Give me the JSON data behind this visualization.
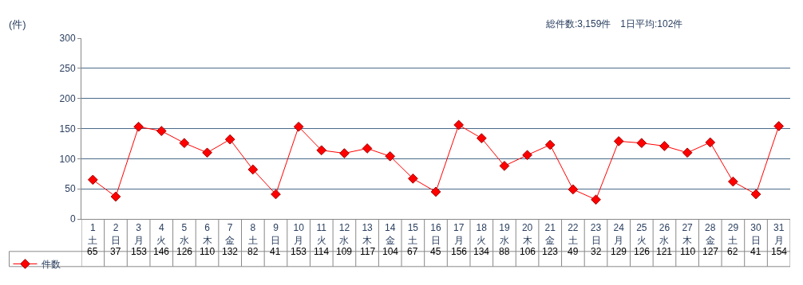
{
  "chart_data": {
    "type": "line",
    "ylabel": "(件)",
    "annotations": [
      "総件数:3,159件　1日平均:102件"
    ],
    "categories": [
      "1\n土",
      "2\n日",
      "3\n月",
      "4\n火",
      "5\n水",
      "6\n木",
      "7\n金",
      "8\n土",
      "9\n日",
      "10\n月",
      "11\n火",
      "12\n水",
      "13\n木",
      "14\n金",
      "15\n土",
      "16\n日",
      "17\n月",
      "18\n火",
      "19\n水",
      "20\n木",
      "21\n金",
      "22\n土",
      "23\n日",
      "24\n月",
      "25\n火",
      "26\n水",
      "27\n木",
      "28\n金",
      "29\n土",
      "30\n日",
      "31\n月"
    ],
    "series": [
      {
        "name": "件数",
        "color": "#ff0000",
        "values": [
          65,
          37,
          153,
          146,
          126,
          110,
          132,
          82,
          41,
          153,
          114,
          109,
          117,
          104,
          67,
          45,
          156,
          134,
          88,
          106,
          123,
          49,
          32,
          129,
          126,
          121,
          110,
          127,
          62,
          41,
          154
        ]
      }
    ],
    "ylim": [
      0,
      300
    ],
    "yticks": [
      0,
      50,
      100,
      150,
      200,
      250,
      300
    ],
    "grid": "y",
    "legend": "bottom left",
    "marker": "diamond",
    "line_style": "solid",
    "data_labels": true
  }
}
